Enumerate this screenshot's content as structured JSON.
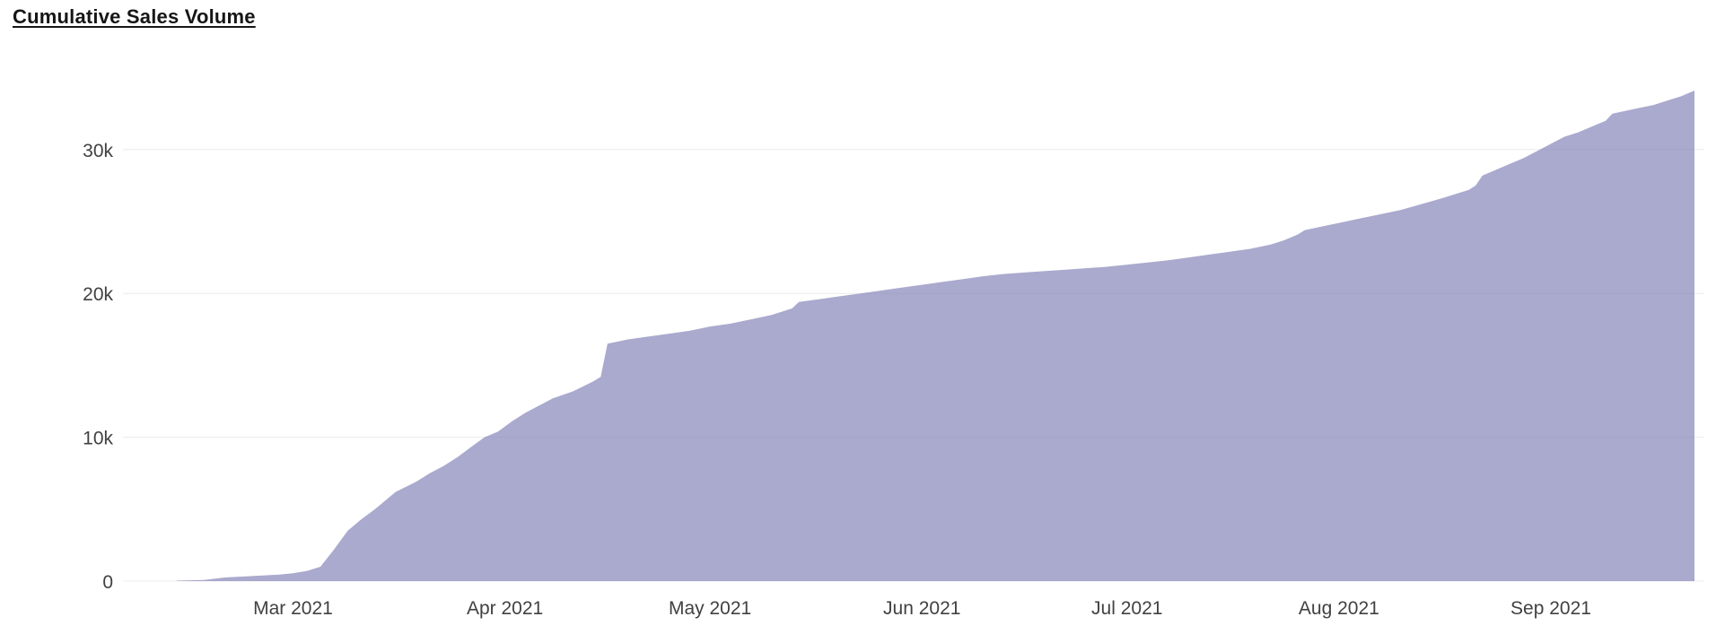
{
  "page": {
    "title": "Cumulative Sales Volume"
  },
  "colors": {
    "title_text": "#161616",
    "axis_text": "#414141",
    "gridline": "#ececec",
    "area_fill": "#8684b9",
    "area_fill_opacity": 0.7
  },
  "chart_data": {
    "type": "area",
    "title": "Cumulative Sales Volume",
    "xlabel": "",
    "ylabel": "",
    "x_type": "time",
    "x_range": [
      "2021-02-12",
      "2021-09-22"
    ],
    "ylim": [
      0,
      35000
    ],
    "grid": "horizontal",
    "legend": "none",
    "y_ticks": [
      {
        "label": "0",
        "value": 0
      },
      {
        "label": "10k",
        "value": 10000
      },
      {
        "label": "20k",
        "value": 20000
      },
      {
        "label": "30k",
        "value": 30000
      }
    ],
    "x_ticks": [
      {
        "label": "Mar 2021",
        "date": "2021-03-01"
      },
      {
        "label": "Apr 2021",
        "date": "2021-04-01"
      },
      {
        "label": "May 2021",
        "date": "2021-05-01"
      },
      {
        "label": "Jun 2021",
        "date": "2021-06-01"
      },
      {
        "label": "Jul 2021",
        "date": "2021-07-01"
      },
      {
        "label": "Aug 2021",
        "date": "2021-08-01"
      },
      {
        "label": "Sep 2021",
        "date": "2021-09-01"
      }
    ],
    "series": [
      {
        "name": "Cumulative Sales Volume",
        "color": "#8684b9",
        "fill_opacity": 0.7,
        "points": [
          {
            "date": "2021-02-12",
            "value": 30
          },
          {
            "date": "2021-02-16",
            "value": 80
          },
          {
            "date": "2021-02-19",
            "value": 250
          },
          {
            "date": "2021-02-23",
            "value": 350
          },
          {
            "date": "2021-02-27",
            "value": 450
          },
          {
            "date": "2021-03-01",
            "value": 550
          },
          {
            "date": "2021-03-03",
            "value": 700
          },
          {
            "date": "2021-03-05",
            "value": 1000
          },
          {
            "date": "2021-03-07",
            "value": 2200
          },
          {
            "date": "2021-03-09",
            "value": 3500
          },
          {
            "date": "2021-03-11",
            "value": 4300
          },
          {
            "date": "2021-03-13",
            "value": 5000
          },
          {
            "date": "2021-03-16",
            "value": 6200
          },
          {
            "date": "2021-03-19",
            "value": 6900
          },
          {
            "date": "2021-03-21",
            "value": 7500
          },
          {
            "date": "2021-03-23",
            "value": 8000
          },
          {
            "date": "2021-03-25",
            "value": 8600
          },
          {
            "date": "2021-03-27",
            "value": 9300
          },
          {
            "date": "2021-03-29",
            "value": 10000
          },
          {
            "date": "2021-03-31",
            "value": 10400
          },
          {
            "date": "2021-04-02",
            "value": 11100
          },
          {
            "date": "2021-04-04",
            "value": 11700
          },
          {
            "date": "2021-04-06",
            "value": 12200
          },
          {
            "date": "2021-04-08",
            "value": 12700
          },
          {
            "date": "2021-04-11",
            "value": 13200
          },
          {
            "date": "2021-04-14",
            "value": 13900
          },
          {
            "date": "2021-04-15",
            "value": 14200
          },
          {
            "date": "2021-04-16",
            "value": 16500
          },
          {
            "date": "2021-04-19",
            "value": 16800
          },
          {
            "date": "2021-04-22",
            "value": 17000
          },
          {
            "date": "2021-04-25",
            "value": 17200
          },
          {
            "date": "2021-04-28",
            "value": 17400
          },
          {
            "date": "2021-05-01",
            "value": 17700
          },
          {
            "date": "2021-05-04",
            "value": 17900
          },
          {
            "date": "2021-05-07",
            "value": 18200
          },
          {
            "date": "2021-05-10",
            "value": 18500
          },
          {
            "date": "2021-05-12",
            "value": 18800
          },
          {
            "date": "2021-05-13",
            "value": 18950
          },
          {
            "date": "2021-05-14",
            "value": 19400
          },
          {
            "date": "2021-05-17",
            "value": 19600
          },
          {
            "date": "2021-05-20",
            "value": 19800
          },
          {
            "date": "2021-05-23",
            "value": 20000
          },
          {
            "date": "2021-05-26",
            "value": 20200
          },
          {
            "date": "2021-05-29",
            "value": 20400
          },
          {
            "date": "2021-06-01",
            "value": 20600
          },
          {
            "date": "2021-06-04",
            "value": 20800
          },
          {
            "date": "2021-06-07",
            "value": 21000
          },
          {
            "date": "2021-06-10",
            "value": 21200
          },
          {
            "date": "2021-06-13",
            "value": 21350
          },
          {
            "date": "2021-06-16",
            "value": 21450
          },
          {
            "date": "2021-06-19",
            "value": 21550
          },
          {
            "date": "2021-06-22",
            "value": 21650
          },
          {
            "date": "2021-06-25",
            "value": 21750
          },
          {
            "date": "2021-06-28",
            "value": 21850
          },
          {
            "date": "2021-07-01",
            "value": 22000
          },
          {
            "date": "2021-07-04",
            "value": 22150
          },
          {
            "date": "2021-07-07",
            "value": 22300
          },
          {
            "date": "2021-07-10",
            "value": 22500
          },
          {
            "date": "2021-07-13",
            "value": 22700
          },
          {
            "date": "2021-07-16",
            "value": 22900
          },
          {
            "date": "2021-07-19",
            "value": 23100
          },
          {
            "date": "2021-07-22",
            "value": 23400
          },
          {
            "date": "2021-07-24",
            "value": 23700
          },
          {
            "date": "2021-07-26",
            "value": 24100
          },
          {
            "date": "2021-07-27",
            "value": 24400
          },
          {
            "date": "2021-07-29",
            "value": 24600
          },
          {
            "date": "2021-08-01",
            "value": 24900
          },
          {
            "date": "2021-08-04",
            "value": 25200
          },
          {
            "date": "2021-08-07",
            "value": 25500
          },
          {
            "date": "2021-08-10",
            "value": 25800
          },
          {
            "date": "2021-08-13",
            "value": 26200
          },
          {
            "date": "2021-08-16",
            "value": 26600
          },
          {
            "date": "2021-08-18",
            "value": 26900
          },
          {
            "date": "2021-08-20",
            "value": 27200
          },
          {
            "date": "2021-08-21",
            "value": 27500
          },
          {
            "date": "2021-08-22",
            "value": 28200
          },
          {
            "date": "2021-08-24",
            "value": 28600
          },
          {
            "date": "2021-08-26",
            "value": 29000
          },
          {
            "date": "2021-08-28",
            "value": 29400
          },
          {
            "date": "2021-08-30",
            "value": 29900
          },
          {
            "date": "2021-09-01",
            "value": 30400
          },
          {
            "date": "2021-09-03",
            "value": 30900
          },
          {
            "date": "2021-09-05",
            "value": 31200
          },
          {
            "date": "2021-09-07",
            "value": 31600
          },
          {
            "date": "2021-09-09",
            "value": 32000
          },
          {
            "date": "2021-09-10",
            "value": 32500
          },
          {
            "date": "2021-09-12",
            "value": 32700
          },
          {
            "date": "2021-09-14",
            "value": 32900
          },
          {
            "date": "2021-09-16",
            "value": 33100
          },
          {
            "date": "2021-09-18",
            "value": 33400
          },
          {
            "date": "2021-09-20",
            "value": 33700
          },
          {
            "date": "2021-09-22",
            "value": 34100
          }
        ]
      }
    ]
  }
}
